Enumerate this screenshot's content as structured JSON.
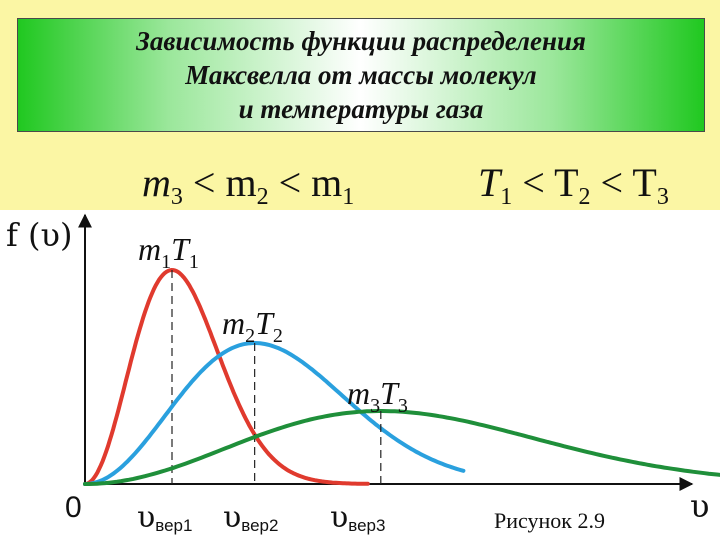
{
  "title_lines": [
    "Зависимость функции распределения",
    "Максвелла от массы молекул",
    "и температуры газа"
  ],
  "mass_condition": [
    "m",
    "3",
    " < m",
    "2",
    " < m",
    "1"
  ],
  "temperature_condition": [
    "T",
    "1",
    " < T",
    "2",
    " < T",
    "3"
  ],
  "caption": "Рисунок 2.9",
  "colors": {
    "band": "#fbf6a4",
    "title_green": "#20c820",
    "curve1": "#e03a2e",
    "curve2": "#2aa0de",
    "curve3": "#1f8f3a",
    "axis": "#111111"
  },
  "chart_data": {
    "type": "line",
    "ylabel": "f (υ)",
    "xlabel": "υ",
    "origin_label": "0",
    "series": [
      {
        "name": "m1T1",
        "label_base": "m",
        "label_sub1": "1",
        "label_mid": "T",
        "label_sub2": "1",
        "v_mode": 1.0,
        "v_end": 3.25,
        "color": "#e03a2e"
      },
      {
        "name": "m2T2",
        "label_base": "m",
        "label_sub1": "2",
        "label_mid": "T",
        "label_sub2": "2",
        "v_mode": 1.95,
        "v_end": 4.35,
        "color": "#2aa0de"
      },
      {
        "name": "m3T3",
        "label_base": "m",
        "label_sub1": "3",
        "label_mid": "T",
        "label_sub2": "3",
        "v_mode": 3.4,
        "v_end": 7.4,
        "color": "#1f8f3a"
      }
    ],
    "x_tick_labels": [
      {
        "base": "υ",
        "sub": "вер1",
        "at": 1.0
      },
      {
        "base": "υ",
        "sub": "вер2",
        "at": 1.95
      },
      {
        "base": "υ",
        "sub": "вер3",
        "at": 3.4
      }
    ],
    "xlim": [
      0,
      7.5
    ],
    "grid": false,
    "dashed_mode_lines": true
  }
}
